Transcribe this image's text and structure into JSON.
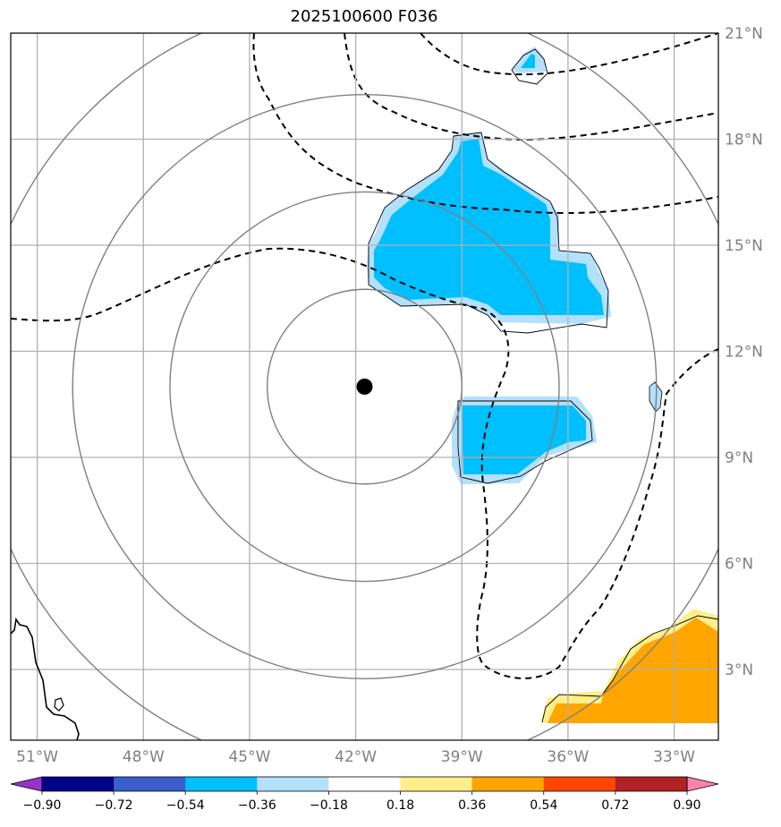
{
  "title": "2025100600 F036",
  "map": {
    "lon_range": [
      -51.75,
      -31.75
    ],
    "lat_range": [
      1.0,
      21.0
    ],
    "lon_ticks": [
      -51,
      -48,
      -45,
      -42,
      -39,
      -36,
      -33
    ],
    "lon_tick_labels": [
      "51°W",
      "48°W",
      "45°W",
      "42°W",
      "39°W",
      "36°W",
      "33°W"
    ],
    "lat_ticks": [
      3,
      6,
      9,
      12,
      15,
      18,
      21
    ],
    "lat_tick_labels": [
      "3°N",
      "6°N",
      "9°N",
      "12°N",
      "15°N",
      "18°N",
      "21°N"
    ],
    "storm_center": {
      "lon": -41.75,
      "lat": 11.0
    },
    "range_rings_deg": [
      2.75,
      5.5,
      8.25,
      11.0
    ],
    "grid": true,
    "colors": {
      "grid": "#b0b0b0",
      "rings": "#808080",
      "contour": "#000000",
      "negative_fill": "#00bfff",
      "negative_edge": "#b3e0fb",
      "positive_fill": "#ffa500",
      "positive_edge": "#ffee8a"
    }
  },
  "colorbar": {
    "levels": [
      -0.9,
      -0.72,
      -0.54,
      -0.36,
      -0.18,
      0.18,
      0.36,
      0.54,
      0.72,
      0.9
    ],
    "labels": [
      "−0.90",
      "−0.72",
      "−0.54",
      "−0.36",
      "−0.18",
      "0.18",
      "0.36",
      "0.54",
      "0.72",
      "0.90"
    ],
    "colors": [
      "#9932cc",
      "#00008b",
      "#3a5fcd",
      "#00bfff",
      "#b3e0fb",
      "#ffffff",
      "#ffee8a",
      "#ffa500",
      "#ff4500",
      "#b22222",
      "#ff82ab"
    ],
    "extend": "both"
  }
}
